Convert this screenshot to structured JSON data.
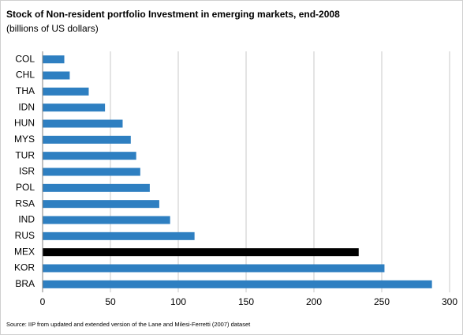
{
  "chart_data": {
    "type": "barh",
    "title": "Stock of Non-resident portfolio Investment in emerging markets, end-2008",
    "subtitle": "(billions of US dollars)",
    "source": "Source: IIP from updated and extended version of the Lane and Milesi-Ferretti (2007) dataset",
    "categories": [
      "COL",
      "CHL",
      "THA",
      "IDN",
      "HUN",
      "MYS",
      "TUR",
      "ISR",
      "POL",
      "RSA",
      "IND",
      "RUS",
      "MEX",
      "KOR",
      "BRA"
    ],
    "values": [
      16,
      20,
      34,
      46,
      59,
      65,
      69,
      72,
      79,
      86,
      94,
      112,
      233,
      252,
      287
    ],
    "colors": [
      "#2e7fc1",
      "#2e7fc1",
      "#2e7fc1",
      "#2e7fc1",
      "#2e7fc1",
      "#2e7fc1",
      "#2e7fc1",
      "#2e7fc1",
      "#2e7fc1",
      "#2e7fc1",
      "#2e7fc1",
      "#2e7fc1",
      "#000000",
      "#2e7fc1",
      "#2e7fc1"
    ],
    "xlim": [
      0,
      300
    ],
    "xticks": [
      0,
      50,
      100,
      150,
      200,
      250,
      300
    ],
    "grid": true
  }
}
